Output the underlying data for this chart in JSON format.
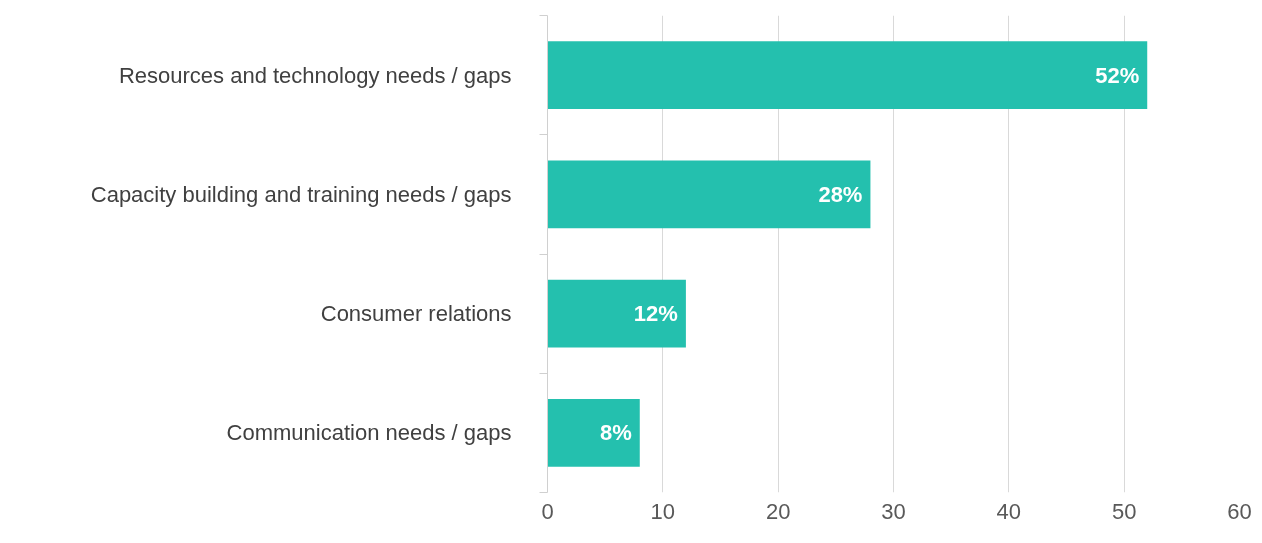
{
  "chart_data": {
    "type": "bar",
    "orientation": "horizontal",
    "categories": [
      "Resources and technology needs / gaps",
      "Capacity building and training needs / gaps",
      "Consumer relations",
      "Communication needs / gaps"
    ],
    "values": [
      52,
      28,
      12,
      8
    ],
    "value_labels": [
      "52%",
      "28%",
      "12%",
      "8%"
    ],
    "color": "#24c0ae",
    "xlim": [
      0,
      60
    ],
    "xticks": [
      0,
      10,
      20,
      30,
      40,
      50,
      60
    ],
    "grid": "x"
  }
}
